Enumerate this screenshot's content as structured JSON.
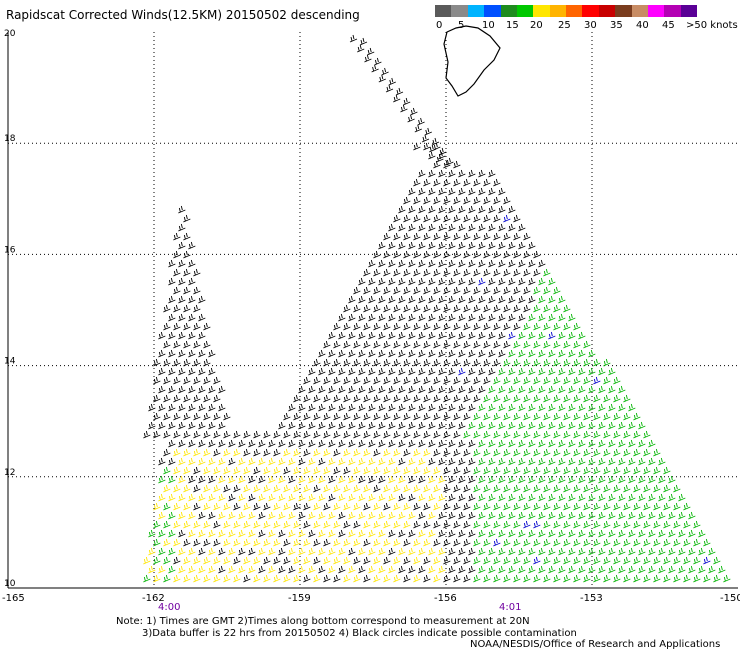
{
  "title": "Rapidscat Corrected Winds(12.5KM) 20150502 descending",
  "colorbar": {
    "labels": [
      "0",
      "5",
      "10",
      "15",
      "20",
      "25",
      "30",
      "35",
      "40",
      "45",
      ">50 knots"
    ],
    "colors": [
      "#5a5a5a",
      "#8a8a8a",
      "#00b4ff",
      "#0050ff",
      "#1e8c1e",
      "#00c800",
      "#ffe600",
      "#ffb400",
      "#ff6400",
      "#ff0000",
      "#c80000",
      "#7a3c1e",
      "#c88c64",
      "#ff00ff",
      "#b400b4",
      "#5a0096"
    ]
  },
  "map": {
    "lat_labels": [
      "20",
      "18",
      "16",
      "14",
      "12",
      "10"
    ],
    "lon_labels": [
      "-165",
      "-162",
      "-159",
      "-156",
      "-153",
      "-150"
    ],
    "time_labels": [
      "4:00",
      "4:01"
    ],
    "wind_colors": {
      "black": "#000000",
      "yellow": "#ffe600",
      "green": "#00b400",
      "blue": "#0000cc"
    }
  },
  "notes": {
    "line1": "Note: 1) Times are GMT 2)Times along bottom correspond to measurement at 20N",
    "line2": "3)Data buffer is 22 hrs from 20150502 4) Black circles indicate possible contamination",
    "credit": "NOAA/NESDIS/Office of Research and Applications"
  }
}
